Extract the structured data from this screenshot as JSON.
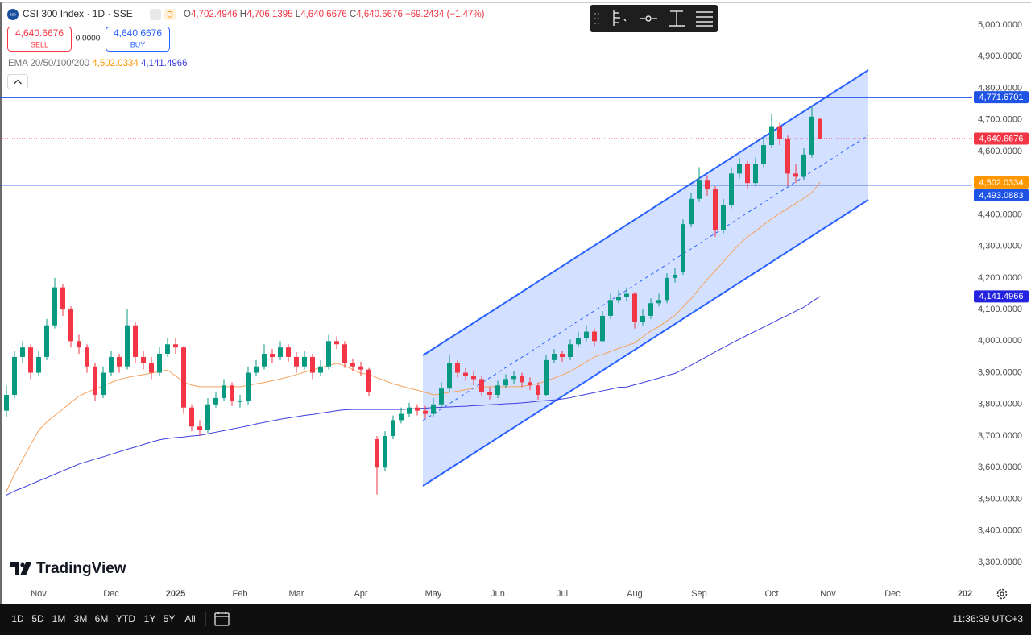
{
  "header": {
    "logo_text": "300",
    "symbol": "CSI 300 Index · 1D · SSE",
    "badge": "D",
    "ohlc": [
      {
        "key": "O",
        "value": "4,702.4946"
      },
      {
        "key": "H",
        "value": "4,706.1395"
      },
      {
        "key": "L",
        "value": "4,640.6676"
      },
      {
        "key": "C",
        "value": "4,640.6676"
      }
    ],
    "change": "−69.2434 (−1.47%)"
  },
  "trade": {
    "sell_price": "4,640.6676",
    "sell": "SELL",
    "spread": "0.0000",
    "buy_price": "4,640.6676",
    "buy": "BUY"
  },
  "brand": "TradingView",
  "toolbar": {
    "ranges": [
      "1D",
      "5D",
      "1M",
      "3M",
      "6M",
      "YTD",
      "1Y",
      "5Y",
      "All"
    ],
    "clock": "11:36:39 UTC+3"
  },
  "chart_data": {
    "type": "candlestick",
    "grid": false,
    "up_color": "#089981",
    "down_color": "#f23645",
    "ylim": [
      3231.1,
      5068.8
    ],
    "yticks": [
      {
        "value": 3300,
        "label": "3,300.0000"
      },
      {
        "value": 3400,
        "label": "3,400.0000"
      },
      {
        "value": 3500,
        "label": "3,500.0000"
      },
      {
        "value": 3600,
        "label": "3,600.0000"
      },
      {
        "value": 3700,
        "label": "3,700.0000"
      },
      {
        "value": 3800,
        "label": "3,800.0000"
      },
      {
        "value": 3900,
        "label": "3,900.0000"
      },
      {
        "value": 4000,
        "label": "4,000.0000"
      },
      {
        "value": 4100,
        "label": "4,100.0000"
      },
      {
        "value": 4200,
        "label": "4,200.0000"
      },
      {
        "value": 4300,
        "label": "4,300.0000"
      },
      {
        "value": 4400,
        "label": "4,400.0000"
      },
      {
        "value": 4500,
        "label": "4,500.0000"
      },
      {
        "value": 4600,
        "label": "4,600.0000"
      },
      {
        "value": 4700,
        "label": "4,700.0000"
      },
      {
        "value": 4800,
        "label": "4,800.0000"
      },
      {
        "value": 4900,
        "label": "4,900.0000"
      },
      {
        "value": 5000,
        "label": "5,000.0000"
      }
    ],
    "categories": [
      null,
      null,
      null,
      null,
      "Nov",
      null,
      null,
      null,
      null,
      null,
      null,
      null,
      null,
      "Dec",
      null,
      null,
      null,
      null,
      null,
      null,
      null,
      "2025",
      null,
      null,
      null,
      null,
      null,
      null,
      null,
      "Feb",
      null,
      null,
      null,
      null,
      null,
      null,
      "Mar",
      null,
      null,
      null,
      null,
      null,
      null,
      null,
      "Apr",
      null,
      null,
      null,
      null,
      null,
      null,
      null,
      null,
      "May",
      null,
      null,
      null,
      null,
      null,
      null,
      null,
      "Jun",
      null,
      null,
      null,
      null,
      null,
      null,
      null,
      "Jul",
      null,
      null,
      null,
      null,
      null,
      null,
      null,
      null,
      "Aug",
      null,
      null,
      null,
      null,
      null,
      null,
      null,
      "Sep",
      null,
      null,
      null,
      null,
      null,
      null,
      null,
      null,
      "Oct",
      null,
      null,
      null,
      null,
      null,
      null,
      "Nov",
      null,
      null,
      null,
      null,
      null,
      null,
      null,
      "Dec",
      null,
      null,
      null,
      null,
      null,
      null,
      null,
      null,
      "202"
    ],
    "open": [
      3780,
      3830,
      3950,
      3980,
      3900,
      3950,
      4050,
      4170,
      4100,
      4000,
      3980,
      3920,
      3830,
      3900,
      3950,
      3920,
      4050,
      3950,
      3930,
      3900,
      3960,
      3990,
      3980,
      3790,
      3730,
      3720,
      3800,
      3820,
      3860,
      3810,
      3810,
      3900,
      3920,
      3960,
      3950,
      3980,
      3950,
      3920,
      3950,
      3900,
      3920,
      4000,
      3990,
      3930,
      3920,
      3910,
      3690,
      3600,
      3700,
      3750,
      3770,
      3790,
      3780,
      3770,
      3800,
      3850,
      3930,
      3900,
      3890,
      3880,
      3840,
      3830,
      3860,
      3880,
      3890,
      3870,
      3860,
      3830,
      3940,
      3960,
      3950,
      3990,
      4010,
      4030,
      4000,
      4080,
      4130,
      4140,
      4150,
      4060,
      4080,
      4120,
      4130,
      4200,
      4220,
      4370,
      4450,
      4510,
      4480,
      4350,
      4430,
      4530,
      4560,
      4500,
      4560,
      4620,
      4680,
      4640,
      4530,
      4520,
      4590,
      4702.4946,
      null,
      null,
      null,
      null,
      null,
      null,
      null,
      null,
      null,
      null,
      null,
      null,
      null,
      null,
      null,
      null,
      null,
      null
    ],
    "high": [
      3860,
      3970,
      4000,
      3990,
      3970,
      4070,
      4200,
      4180,
      4110,
      4020,
      3990,
      3930,
      3920,
      3970,
      3960,
      4100,
      4060,
      3970,
      3950,
      3980,
      4010,
      4010,
      3985,
      3800,
      3750,
      3820,
      3840,
      3880,
      3870,
      3830,
      3920,
      3940,
      3990,
      3975,
      4000,
      3990,
      3965,
      3970,
      3960,
      3940,
      4020,
      4015,
      4000,
      3945,
      3935,
      3915,
      3700,
      3715,
      3765,
      3790,
      3805,
      3800,
      3795,
      3820,
      3870,
      3955,
      3940,
      3915,
      3905,
      3890,
      3855,
      3875,
      3895,
      3905,
      3900,
      3885,
      3870,
      3955,
      3975,
      3970,
      4005,
      4030,
      4050,
      4040,
      4095,
      4150,
      4160,
      4170,
      4155,
      4100,
      4135,
      4150,
      4215,
      4230,
      4385,
      4470,
      4550,
      4525,
      4490,
      4450,
      4550,
      4580,
      4570,
      4580,
      4640,
      4720,
      4690,
      4650,
      4560,
      4610,
      4745,
      4706.1395,
      null,
      null,
      null,
      null,
      null,
      null,
      null,
      null,
      null,
      null,
      null,
      null,
      null,
      null,
      null,
      null,
      null,
      null
    ],
    "low": [
      3760,
      3820,
      3930,
      3880,
      3890,
      3940,
      4040,
      4080,
      3980,
      3960,
      3900,
      3810,
      3820,
      3890,
      3900,
      3910,
      3930,
      3910,
      3880,
      3890,
      3950,
      3960,
      3770,
      3715,
      3700,
      3710,
      3790,
      3810,
      3795,
      3790,
      3800,
      3890,
      3910,
      3930,
      3940,
      3935,
      3900,
      3910,
      3880,
      3890,
      3910,
      3975,
      3915,
      3905,
      3890,
      3825,
      3515,
      3590,
      3690,
      3740,
      3760,
      3765,
      3755,
      3760,
      3790,
      3840,
      3885,
      3875,
      3860,
      3825,
      3815,
      3820,
      3850,
      3865,
      3855,
      3845,
      3815,
      3825,
      3930,
      3935,
      3940,
      3980,
      4000,
      3985,
      3995,
      4070,
      4120,
      4125,
      4040,
      4050,
      4070,
      4110,
      4120,
      4185,
      4210,
      4360,
      4440,
      4460,
      4330,
      4340,
      4420,
      4515,
      4480,
      4490,
      4550,
      4610,
      4620,
      4490,
      4500,
      4510,
      4580,
      4640.6676,
      null,
      null,
      null,
      null,
      null,
      null,
      null,
      null,
      null,
      null,
      null,
      null,
      null,
      null,
      null,
      null,
      null,
      null
    ],
    "close": [
      3830,
      3950,
      3980,
      3900,
      3950,
      4050,
      4170,
      4100,
      4000,
      3980,
      3920,
      3830,
      3900,
      3950,
      3920,
      4050,
      3950,
      3930,
      3900,
      3960,
      3990,
      3980,
      3790,
      3730,
      3720,
      3800,
      3820,
      3860,
      3810,
      3810,
      3900,
      3920,
      3960,
      3950,
      3980,
      3950,
      3920,
      3950,
      3900,
      3920,
      4000,
      3990,
      3930,
      3920,
      3910,
      3840,
      3600,
      3700,
      3750,
      3770,
      3790,
      3780,
      3770,
      3800,
      3850,
      3930,
      3900,
      3890,
      3880,
      3840,
      3830,
      3860,
      3880,
      3890,
      3870,
      3860,
      3830,
      3940,
      3960,
      3950,
      3990,
      4010,
      4030,
      4000,
      4080,
      4130,
      4140,
      4150,
      4060,
      4080,
      4120,
      4130,
      4200,
      4210,
      4370,
      4450,
      4510,
      4480,
      4350,
      4430,
      4530,
      4560,
      4500,
      4560,
      4620,
      4680,
      4640,
      4530,
      4520,
      4590,
      4709.911,
      4640.6676,
      null,
      null,
      null,
      null,
      null,
      null,
      null,
      null,
      null,
      null,
      null,
      null,
      null,
      null,
      null,
      null,
      null,
      null
    ],
    "ema_legend": "EMA 20/50/100/200",
    "ema": [
      {
        "color": "#f5a25d",
        "tag_color": "#ff9800",
        "last_label": "4,502.0334",
        "values": [
          3525,
          3579,
          3626,
          3672,
          3718,
          3744,
          3765,
          3785,
          3806,
          3826,
          3838,
          3848,
          3859,
          3869,
          3879,
          3885,
          3890,
          3894,
          3899,
          3904,
          3909,
          3890,
          3870,
          3861,
          3856,
          3856,
          3856,
          3856,
          3856,
          3856,
          3860,
          3865,
          3869,
          3875,
          3880,
          3887,
          3894,
          3902,
          3909,
          3916,
          3923,
          3930,
          3922,
          3910,
          3898,
          3895,
          3884,
          3875,
          3865,
          3858,
          3851,
          3845,
          3838,
          3830,
          3833,
          3838,
          3842,
          3846,
          3851,
          3855,
          3856,
          3856,
          3856,
          3856,
          3856,
          3862,
          3865,
          3875,
          3883,
          3893,
          3904,
          3919,
          3935,
          3950,
          3958,
          3967,
          3977,
          3986,
          3994,
          4014,
          4032,
          4046,
          4064,
          4081,
          4108,
          4135,
          4166,
          4195,
          4223,
          4251,
          4280,
          4308,
          4329,
          4348,
          4368,
          4387,
          4404,
          4420,
          4436,
          4452,
          4470,
          4502.0334,
          null,
          null,
          null,
          null,
          null,
          null,
          null,
          null,
          null,
          null,
          null,
          null,
          null,
          null,
          null,
          null,
          null,
          null
        ]
      },
      {
        "color": "#3d3de0",
        "tag_color": "#2323e0",
        "last_label": "4,141.4966",
        "values": [
          3513,
          3526,
          3536,
          3547,
          3558,
          3568,
          3579,
          3590,
          3600,
          3611,
          3619,
          3627,
          3634,
          3642,
          3650,
          3658,
          3665,
          3673,
          3681,
          3688,
          3692,
          3695,
          3697,
          3700,
          3702,
          3707,
          3712,
          3717,
          3722,
          3727,
          3732,
          3738,
          3743,
          3748,
          3753,
          3757,
          3761,
          3765,
          3768,
          3772,
          3776,
          3780,
          3783,
          3784,
          3784,
          3784,
          3784,
          3784,
          3784,
          3784,
          3785,
          3787,
          3788,
          3790,
          3791,
          3792,
          3793,
          3794,
          3796,
          3797,
          3799,
          3800,
          3802,
          3803,
          3805,
          3807,
          3810,
          3812,
          3814,
          3817,
          3821,
          3827,
          3832,
          3837,
          3843,
          3848,
          3854,
          3855,
          3862,
          3869,
          3876,
          3883,
          3891,
          3898,
          3910,
          3924,
          3938,
          3952,
          3966,
          3980,
          3993,
          4006,
          4019,
          4032,
          4044,
          4057,
          4070,
          4082,
          4095,
          4107,
          4125,
          4141.4966,
          null,
          null,
          null,
          null,
          null,
          null,
          null,
          null,
          null,
          null,
          null,
          null,
          null,
          null,
          null,
          null,
          null,
          null
        ]
      }
    ],
    "hlines": [
      {
        "value": 4771.6701,
        "label": "4,771.6701",
        "color": "#1e53e5"
      },
      {
        "value": 4493.0883,
        "label": "4,493.0883",
        "color": "#1e53e5"
      }
    ],
    "last_price": {
      "value": 4640.6676,
      "label": "4,640.6676",
      "color": "#f23645"
    }
  }
}
